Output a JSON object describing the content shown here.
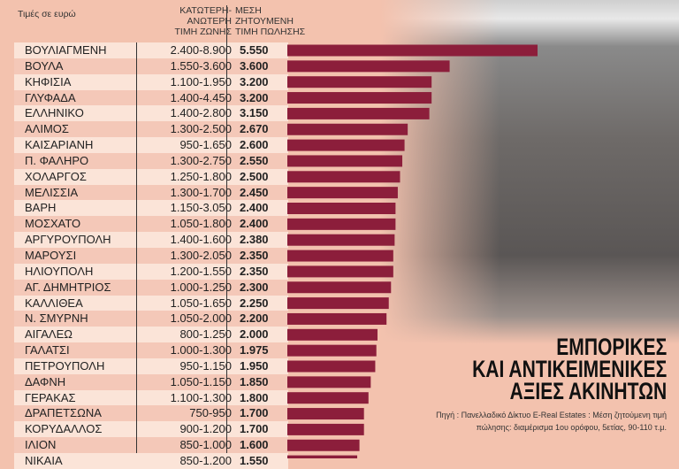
{
  "chart_data": {
    "type": "bar",
    "orientation": "horizontal",
    "title": "ΕΜΠΟΡΙΚΕΣ ΚΑΙ ΑΝΤΙΚΕΙΜΕΝΙΚΕΣ ΑΞΙΕΣ ΑΚΙΝΗΤΩΝ",
    "title_lines": [
      "ΕΜΠΟΡΙΚΕΣ",
      "ΚΑΙ ΑΝΤΙΚΕΙΜΕΝΙΚΕΣ",
      "ΑΞΙΕΣ ΑΚΙΝΗΤΩΝ"
    ],
    "unit_note": "Τιμές σε ευρώ",
    "col_range": "ΚΑΤΩΤΕΡΗ-ΑΝΩΤΕΡΗ ΤΙΜΗ ΖΩΝΗΣ",
    "col_range_lines": [
      "ΚΑΤΩΤΕΡΗ-",
      "ΑΝΩΤΕΡΗ",
      "ΤΙΜΗ ΖΩΝΗΣ"
    ],
    "col_value_lines": [
      "ΜΕΣΗ",
      "ΖΗΤΟΥΜΕΝΗ",
      "ΤΙΜΗ ΠΩΛΗΣΗΣ"
    ],
    "source_lines": [
      "Πηγή : Πανελλαδικό Δίκτυο E-Real Estates : Μέση ζητούμενη τιμή",
      "πώλησης: διαμέρισμα 1ου ορόφου, 5ετίας, 90-110 τ.μ."
    ],
    "bar_color": "#8c1e3b",
    "rows": [
      {
        "area": "ΒΟΥΛΙΑΓΜΕΝΗ",
        "range": "2.400-8.900",
        "value_label": "5.550",
        "value": 5550
      },
      {
        "area": "ΒΟΥΛΑ",
        "range": "1.550-3.600",
        "value_label": "3.600",
        "value": 3600
      },
      {
        "area": "ΚΗΦΙΣΙΑ",
        "range": "1.100-1.950",
        "value_label": "3.200",
        "value": 3200
      },
      {
        "area": "ΓΛΥΦΑΔΑ",
        "range": "1.400-4.450",
        "value_label": "3.200",
        "value": 3200
      },
      {
        "area": "ΕΛΛΗΝΙΚΟ",
        "range": "1.400-2.800",
        "value_label": "3.150",
        "value": 3150
      },
      {
        "area": "ΑΛΙΜΟΣ",
        "range": "1.300-2.500",
        "value_label": "2.670",
        "value": 2670
      },
      {
        "area": "ΚΑΙΣΑΡΙΑΝΗ",
        "range": "950-1.650",
        "value_label": "2.600",
        "value": 2600
      },
      {
        "area": "Π. ΦΑΛΗΡΟ",
        "range": "1.300-2.750",
        "value_label": "2.550",
        "value": 2550
      },
      {
        "area": "ΧΟΛΑΡΓΟΣ",
        "range": "1.250-1.800",
        "value_label": "2.500",
        "value": 2500
      },
      {
        "area": "ΜΕΛΙΣΣΙΑ",
        "range": "1.300-1.700",
        "value_label": "2.450",
        "value": 2450
      },
      {
        "area": "ΒΑΡΗ",
        "range": "1.150-3.050",
        "value_label": "2.400",
        "value": 2400
      },
      {
        "area": "ΜΟΣΧΑΤΟ",
        "range": "1.050-1.800",
        "value_label": "2.400",
        "value": 2400
      },
      {
        "area": "ΑΡΓΥΡΟΥΠΟΛΗ",
        "range": "1.400-1.600",
        "value_label": "2.380",
        "value": 2380
      },
      {
        "area": "ΜΑΡΟΥΣΙ",
        "range": "1.300-2.050",
        "value_label": "2.350",
        "value": 2350
      },
      {
        "area": "ΗΛΙΟΥΠΟΛΗ",
        "range": "1.200-1.550",
        "value_label": "2.350",
        "value": 2350
      },
      {
        "area": "ΑΓ. ΔΗΜΗΤΡΙΟΣ",
        "range": "1.000-1.250",
        "value_label": "2.300",
        "value": 2300
      },
      {
        "area": "ΚΑΛΛΙΘΕΑ",
        "range": "1.050-1.650",
        "value_label": "2.250",
        "value": 2250
      },
      {
        "area": "Ν. ΣΜΥΡΝΗ",
        "range": "1.050-2.000",
        "value_label": "2.200",
        "value": 2200
      },
      {
        "area": "ΑΙΓΑΛΕΩ",
        "range": "800-1.250",
        "value_label": "2.000",
        "value": 2000
      },
      {
        "area": "ΓΑΛΑΤΣΙ",
        "range": "1.000-1.300",
        "value_label": "1.975",
        "value": 1975
      },
      {
        "area": "ΠΕΤΡΟΥΠΟΛΗ",
        "range": "950-1.150",
        "value_label": "1.950",
        "value": 1950
      },
      {
        "area": "ΔΑΦΝΗ",
        "range": "1.050-1.150",
        "value_label": "1.850",
        "value": 1850
      },
      {
        "area": "ΓΕΡΑΚΑΣ",
        "range": "1.100-1.300",
        "value_label": "1.800",
        "value": 1800
      },
      {
        "area": "ΔΡΑΠΕΤΣΩΝΑ",
        "range": "750-950",
        "value_label": "1.700",
        "value": 1700
      },
      {
        "area": "ΚΟΡΥΔΑΛΛΟΣ",
        "range": "900-1.200",
        "value_label": "1.700",
        "value": 1700
      },
      {
        "area": "ΙΛΙΟΝ",
        "range": "850-1.000",
        "value_label": "1.600",
        "value": 1600
      },
      {
        "area": "ΝΙΚΑΙΑ",
        "range": "850-1.200",
        "value_label": "1.550",
        "value": 1550
      }
    ]
  }
}
